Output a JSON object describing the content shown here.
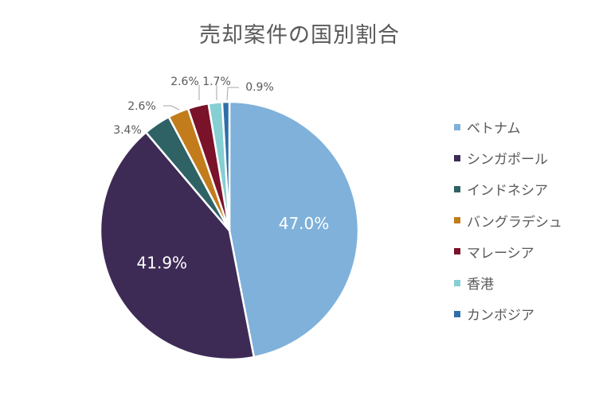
{
  "chart_data": {
    "type": "pie",
    "title": "売却案件の国別割合",
    "series": [
      {
        "name": "ベトナム",
        "value": 47.0,
        "label": "47.0%",
        "color": "#7FB1DA"
      },
      {
        "name": "シンガポール",
        "value": 41.9,
        "label": "41.9%",
        "color": "#3D2B56"
      },
      {
        "name": "インドネシア",
        "value": 3.4,
        "label": "3.4%",
        "color": "#2E6265"
      },
      {
        "name": "バングラデシュ",
        "value": 2.6,
        "label": "2.6%",
        "color": "#C27C1C"
      },
      {
        "name": "マレーシア",
        "value": 2.6,
        "label": "2.6%",
        "color": "#7A1229"
      },
      {
        "name": "香港",
        "value": 1.7,
        "label": "1.7%",
        "color": "#86CFD3"
      },
      {
        "name": "カンボジア",
        "value": 0.9,
        "label": "0.9%",
        "color": "#2E6FA8"
      }
    ],
    "legend_position": "right",
    "start": "12 o'clock, clockwise"
  }
}
